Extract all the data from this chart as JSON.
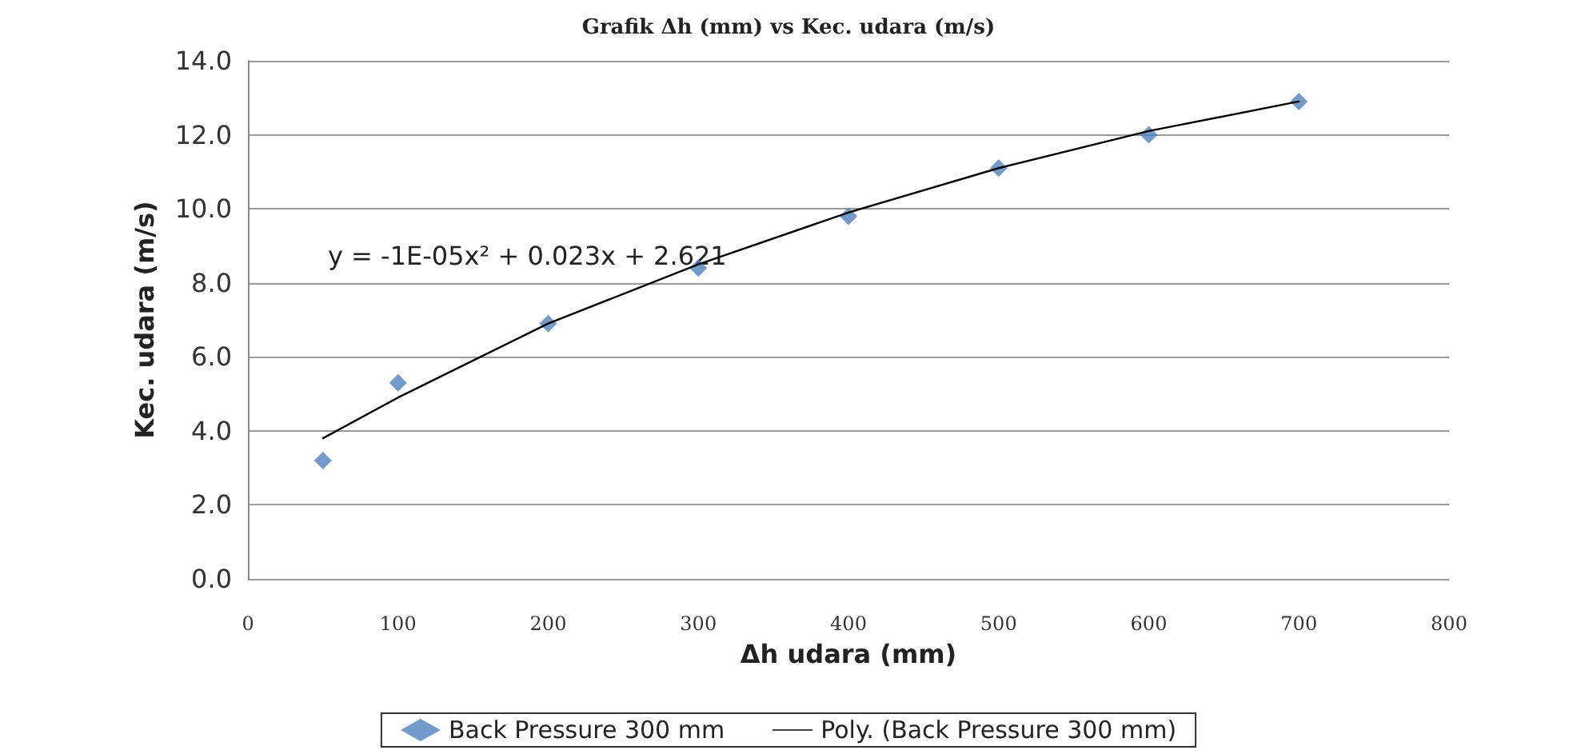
{
  "chart_data": {
    "type": "scatter",
    "title": "Grafik Δh (mm) vs Kec. udara (m/s)",
    "xlabel": "Δh udara (mm)",
    "ylabel": "Kec. udara (m/s)",
    "annotations": [
      "y = -1E-05x² + 0.023x + 2.621"
    ],
    "series": [
      {
        "name": "Back Pressure 300 mm",
        "marker": "diamond",
        "color": "#4f81bd",
        "x": [
          50,
          100,
          200,
          300,
          400,
          500,
          600,
          700
        ],
        "values": [
          3.2,
          5.3,
          6.9,
          8.4,
          9.8,
          11.1,
          12.0,
          12.9
        ]
      },
      {
        "name": "Poly. (Back Pressure 300 mm)",
        "type": "line",
        "marker": "none",
        "color": "#000000",
        "x": [
          50,
          100,
          150,
          200,
          300,
          400,
          500,
          600,
          700
        ],
        "values": [
          3.8,
          4.9,
          5.9,
          6.9,
          8.5,
          9.9,
          11.1,
          12.1,
          12.9
        ]
      }
    ],
    "xlim": [
      0,
      800
    ],
    "xticks": [
      0,
      100,
      200,
      300,
      400,
      500,
      600,
      700,
      800
    ],
    "ylim": [
      0,
      14
    ],
    "yticks": [
      {
        "value": 0,
        "label": "0.0"
      },
      {
        "value": 2,
        "label": "2.0"
      },
      {
        "value": 4,
        "label": "4.0"
      },
      {
        "value": 6,
        "label": "6.0"
      },
      {
        "value": 8,
        "label": "8.0"
      },
      {
        "value": 10,
        "label": "10.0"
      },
      {
        "value": 12,
        "label": "12.0"
      },
      {
        "value": 14,
        "label": "14.0"
      }
    ],
    "grid": "y",
    "legend": "bottom"
  }
}
